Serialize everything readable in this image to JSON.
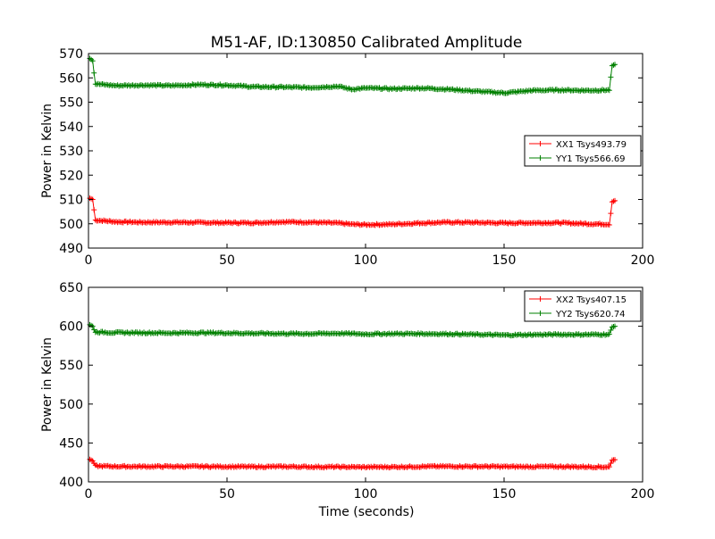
{
  "figure": {
    "title": "M51-AF, ID:130850 Calibrated Amplitude",
    "xlabel": "Time (seconds)"
  },
  "chart_data": [
    {
      "type": "line",
      "title": "M51-AF, ID:130850 Calibrated Amplitude",
      "xlabel": "",
      "ylabel": "Power in Kelvin",
      "xlim": [
        0,
        200
      ],
      "ylim": [
        490,
        570
      ],
      "xticks": [
        0,
        50,
        100,
        150,
        200
      ],
      "yticks": [
        490,
        500,
        510,
        520,
        530,
        540,
        550,
        560,
        570
      ],
      "grid": false,
      "legend": "center-right",
      "series": [
        {
          "name": "XX1 Tsys493.79",
          "color": "#ff0000",
          "x": [
            0.5,
            1.5,
            2.5,
            10,
            20,
            30,
            40,
            50,
            60,
            70,
            80,
            90,
            95,
            100,
            110,
            120,
            130,
            140,
            150,
            160,
            170,
            180,
            188,
            189,
            190
          ],
          "values": [
            510.5,
            510,
            501.5,
            500.8,
            500.6,
            500.6,
            500.5,
            500.4,
            500.4,
            500.8,
            500.6,
            500.3,
            499.8,
            499.6,
            499.8,
            500.3,
            500.6,
            500.5,
            500.3,
            500.4,
            500.4,
            500.0,
            499.8,
            509,
            509.5
          ]
        },
        {
          "name": "YY1 Tsys566.69",
          "color": "#008000",
          "x": [
            0.5,
            1.5,
            2.5,
            10,
            20,
            30,
            40,
            50,
            60,
            70,
            80,
            90,
            95,
            100,
            110,
            120,
            130,
            140,
            150,
            160,
            170,
            180,
            188,
            189,
            190
          ],
          "values": [
            568,
            567,
            557.5,
            556.8,
            557.0,
            556.8,
            557.2,
            557.0,
            556.3,
            556.2,
            556.0,
            556.5,
            555.3,
            555.8,
            555.5,
            555.8,
            555.3,
            554.5,
            553.8,
            554.8,
            555.0,
            554.8,
            555.0,
            565,
            565.5
          ]
        }
      ]
    },
    {
      "type": "line",
      "title": "",
      "xlabel": "Time (seconds)",
      "ylabel": "Power in Kelvin",
      "xlim": [
        0,
        200
      ],
      "ylim": [
        400,
        650
      ],
      "xticks": [
        0,
        50,
        100,
        150,
        200
      ],
      "yticks": [
        400,
        450,
        500,
        550,
        600,
        650
      ],
      "grid": false,
      "legend": "top-right",
      "series": [
        {
          "name": "XX2 Tsys407.15",
          "color": "#ff0000",
          "x": [
            0.5,
            1.5,
            2.5,
            10,
            20,
            30,
            40,
            50,
            60,
            70,
            80,
            90,
            100,
            110,
            120,
            130,
            140,
            150,
            160,
            170,
            180,
            188,
            189,
            190
          ],
          "values": [
            429,
            427,
            420.5,
            419.8,
            419.7,
            419.8,
            419.8,
            419.6,
            419.4,
            419.6,
            419.3,
            419.2,
            419.0,
            419.2,
            419.7,
            419.9,
            419.8,
            419.6,
            419.5,
            419.6,
            419.3,
            419.2,
            428,
            428.5
          ]
        },
        {
          "name": "YY2 Tsys620.74",
          "color": "#008000",
          "x": [
            0.5,
            1.5,
            2.5,
            10,
            20,
            30,
            40,
            50,
            60,
            70,
            80,
            90,
            100,
            110,
            120,
            130,
            140,
            150,
            160,
            170,
            180,
            188,
            189,
            190
          ],
          "values": [
            602,
            600,
            592.5,
            591.8,
            591.6,
            591.3,
            591.6,
            591.3,
            590.8,
            590.5,
            590.4,
            590.9,
            590.0,
            590.4,
            590.4,
            590.1,
            589.4,
            588.6,
            589.1,
            589.4,
            589.3,
            589.5,
            599,
            600
          ]
        }
      ]
    }
  ]
}
